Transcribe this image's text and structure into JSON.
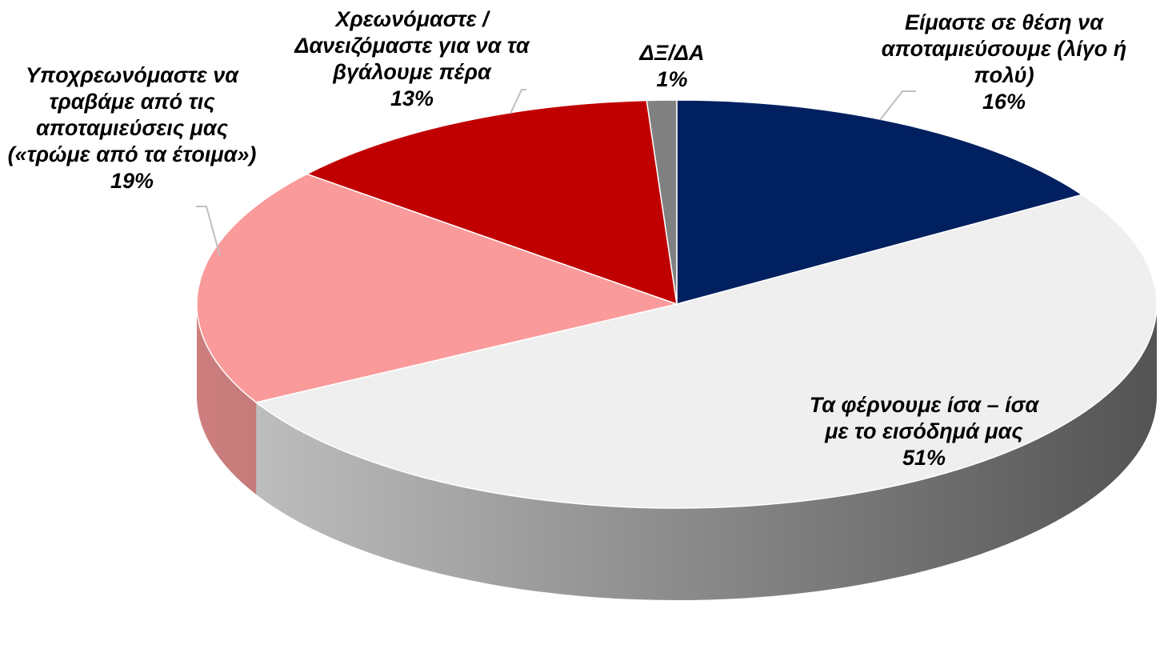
{
  "chart_data": {
    "type": "pie",
    "categories": [
      "Είμαστε σε θέση να αποταμιεύσουμε (λίγο ή πολύ)",
      "Τα φέρνουμε ίσα – ίσα με το εισόδημά μας",
      "Υποχρεωνόμαστε να τραβάμε από τις αποταμιεύσεις μας («τρώμε από τα έτοιμα»)",
      "Χρεωνόμαστε / Δανειζόμαστε για να τα βγάλουμε πέρα",
      "ΔΞ/ΔΑ"
    ],
    "values": [
      16,
      51,
      19,
      13,
      1
    ],
    "value_labels": [
      "16%",
      "51%",
      "19%",
      "13%",
      "1%"
    ],
    "colors": [
      "#002060",
      "#efefef",
      "#fa9a9a",
      "#c00000",
      "#808080"
    ]
  }
}
